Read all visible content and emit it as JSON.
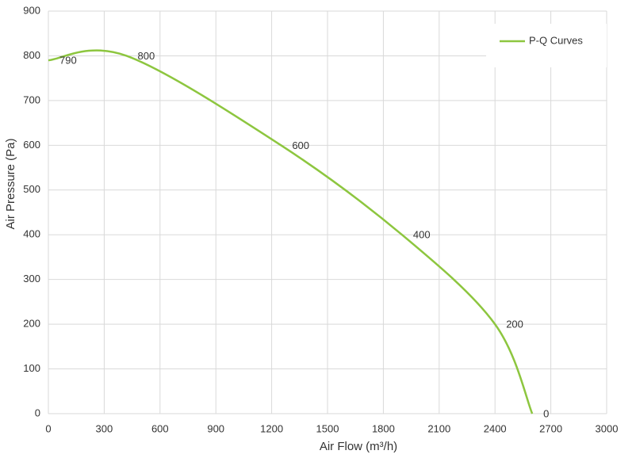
{
  "chart_data": {
    "type": "line",
    "x_label": "Air Flow  (m³/h)",
    "y_label": "Air Pressure  (Pa)",
    "x": [
      0,
      420,
      1250,
      1900,
      2400,
      2600
    ],
    "series": [
      {
        "name": "P-Q Curves",
        "color": "#8dc63f",
        "values": [
          790,
          800,
          600,
          400,
          200,
          0
        ]
      }
    ],
    "xlim": [
      0,
      3000
    ],
    "xticks": [
      0,
      300,
      600,
      900,
      1200,
      1500,
      1800,
      2100,
      2400,
      2700,
      3000
    ],
    "ylim": [
      0,
      900
    ],
    "yticks": [
      0,
      100,
      200,
      300,
      400,
      500,
      600,
      700,
      800,
      900
    ],
    "grid": true,
    "legend": "top-right"
  }
}
